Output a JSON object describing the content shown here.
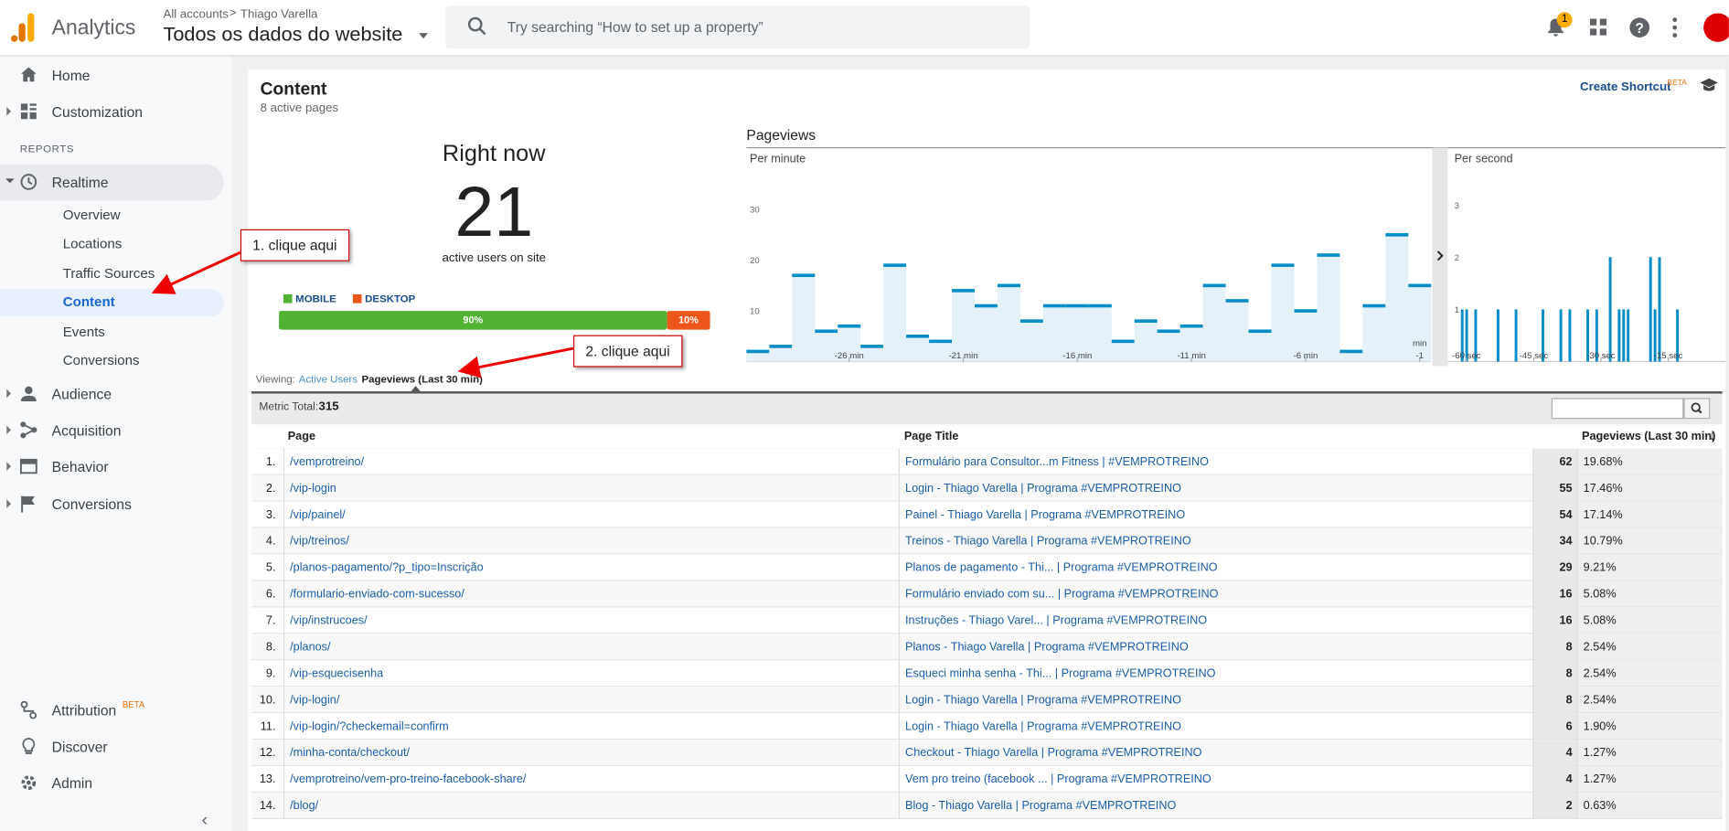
{
  "header": {
    "logo_text": "Analytics",
    "breadcrumb": [
      "All accounts",
      "Thiago Varella"
    ],
    "view": "Todos os dados do website",
    "search_placeholder": "Try searching “How to set up a property”",
    "notification_count": 1
  },
  "sidebar": {
    "home": "Home",
    "customization": "Customization",
    "section": "REPORTS",
    "realtime": "Realtime",
    "realtime_items": [
      "Overview",
      "Locations",
      "Traffic Sources",
      "Content",
      "Events",
      "Conversions"
    ],
    "groups": [
      "Audience",
      "Acquisition",
      "Behavior",
      "Conversions"
    ],
    "attribution": "Attribution",
    "attribution_badge": "BETA",
    "discover": "Discover",
    "admin": "Admin"
  },
  "content": {
    "title": "Content",
    "subtitle": "8 active pages",
    "create_shortcut": "Create Shortcut",
    "shortcut_badge": "BETA"
  },
  "right_now": {
    "label": "Right now",
    "value": 21,
    "caption": "active users on site",
    "devices": [
      {
        "name": "MOBILE",
        "color": "#50b432",
        "value": 90,
        "value_label": "90%"
      },
      {
        "name": "DESKTOP",
        "color": "#ed561b",
        "value": 10,
        "value_label": "10%"
      }
    ]
  },
  "annotations": [
    "1. clique aqui",
    "2. clique aqui"
  ],
  "pageviews": {
    "title": "Pageviews",
    "per_minute": {
      "type": "bar",
      "title": "Per minute",
      "color": "#058dc7",
      "values": [
        2,
        3,
        17,
        6,
        7,
        3,
        19,
        5,
        4,
        14,
        11,
        15,
        8,
        11,
        11,
        11,
        4,
        8,
        6,
        7,
        15,
        12,
        6,
        19,
        10,
        21,
        2,
        11,
        25,
        15
      ],
      "x": [
        -30,
        -29,
        -28,
        -27,
        -26,
        -25,
        -24,
        -23,
        -22,
        -21,
        -20,
        -19,
        -18,
        -17,
        -16,
        -15,
        -14,
        -13,
        -12,
        -11,
        -10,
        -9,
        -8,
        -7,
        -6,
        -5,
        -4,
        -3,
        -2,
        -1
      ],
      "xlim": [
        -30.5,
        -0.5
      ],
      "xticks": [
        {
          "value": -26,
          "label": "-26 min"
        },
        {
          "value": -21,
          "label": "-21 min"
        },
        {
          "value": -16,
          "label": "-16 min"
        },
        {
          "value": -11,
          "label": "-11 min"
        },
        {
          "value": -6,
          "label": "-6 min"
        },
        {
          "value": -1,
          "label": "-1"
        }
      ],
      "x_unit": "min",
      "ylim": [
        0,
        35
      ],
      "yticks": [
        10,
        20,
        30
      ]
    },
    "per_second": {
      "type": "bar",
      "title": "Per second",
      "color": "#058dc7",
      "values": [
        0,
        0,
        1,
        1,
        0,
        1,
        0,
        0,
        0,
        0,
        1,
        0,
        0,
        0,
        1,
        0,
        0,
        0,
        0,
        0,
        1,
        0,
        0,
        0,
        1,
        0,
        1,
        0,
        0,
        0,
        1,
        0,
        1,
        0,
        0,
        2,
        0,
        1,
        1,
        1,
        0,
        0,
        0,
        0,
        2,
        1,
        2,
        0,
        0,
        0,
        1,
        0,
        0,
        0,
        0,
        0,
        0,
        0,
        0,
        0
      ],
      "xlim": [
        -60,
        0
      ],
      "xticks": [
        {
          "value": -60,
          "label": "-60 sec"
        },
        {
          "value": -45,
          "label": "-45 sec"
        },
        {
          "value": -30,
          "label": "-30 sec"
        },
        {
          "value": -15,
          "label": "-15 sec"
        }
      ],
      "ylim": [
        0,
        3.4
      ],
      "yticks": [
        1,
        2,
        3
      ]
    }
  },
  "viewing": {
    "label": "Viewing:",
    "tabs": [
      "Active Users",
      "Pageviews (Last 30 min)"
    ]
  },
  "table": {
    "metric_total_label": "Metric Total:",
    "metric_total": 315,
    "columns": [
      "Page",
      "Page Title",
      "Pageviews (Last 30 min)"
    ],
    "rows": [
      {
        "rank": "1.",
        "page": "/vemprotreino/",
        "title": "Formulário para Consultor...m Fitness | #VEMPROTREINO",
        "pageviews": 62,
        "share": "19.68%"
      },
      {
        "rank": "2.",
        "page": "/vip-login",
        "title": "Login - Thiago Varella | Programa #VEMPROTREINO",
        "pageviews": 55,
        "share": "17.46%"
      },
      {
        "rank": "3.",
        "page": "/vip/painel/",
        "title": "Painel - Thiago Varella | Programa #VEMPROTREINO",
        "pageviews": 54,
        "share": "17.14%"
      },
      {
        "rank": "4.",
        "page": "/vip/treinos/",
        "title": "Treinos - Thiago Varella | Programa #VEMPROTREINO",
        "pageviews": 34,
        "share": "10.79%"
      },
      {
        "rank": "5.",
        "page": "/planos-pagamento/?p_tipo=Inscrição",
        "title": "Planos de pagamento - Thi... | Programa #VEMPROTREINO",
        "pageviews": 29,
        "share": "9.21%"
      },
      {
        "rank": "6.",
        "page": "/formulario-enviado-com-sucesso/",
        "title": "Formulário enviado com su... | Programa #VEMPROTREINO",
        "pageviews": 16,
        "share": "5.08%"
      },
      {
        "rank": "7.",
        "page": "/vip/instrucoes/",
        "title": "Instruções - Thiago Varel... | Programa #VEMPROTREINO",
        "pageviews": 16,
        "share": "5.08%"
      },
      {
        "rank": "8.",
        "page": "/planos/",
        "title": "Planos - Thiago Varella | Programa #VEMPROTREINO",
        "pageviews": 8,
        "share": "2.54%"
      },
      {
        "rank": "9.",
        "page": "/vip-esquecisenha",
        "title": "Esqueci minha senha - Thi... | Programa #VEMPROTREINO",
        "pageviews": 8,
        "share": "2.54%"
      },
      {
        "rank": "10.",
        "page": "/vip-login/",
        "title": "Login - Thiago Varella | Programa #VEMPROTREINO",
        "pageviews": 8,
        "share": "2.54%"
      },
      {
        "rank": "11.",
        "page": "/vip-login/?checkemail=confirm",
        "title": "Login - Thiago Varella | Programa #VEMPROTREINO",
        "pageviews": 6,
        "share": "1.90%"
      },
      {
        "rank": "12.",
        "page": "/minha-conta/checkout/",
        "title": "Checkout - Thiago Varella | Programa #VEMPROTREINO",
        "pageviews": 4,
        "share": "1.27%"
      },
      {
        "rank": "13.",
        "page": "/vemprotreino/vem-pro-treino-facebook-share/",
        "title": "Vem pro treino (facebook ... | Programa #VEMPROTREINO",
        "pageviews": 4,
        "share": "1.27%"
      },
      {
        "rank": "14.",
        "page": "/blog/",
        "title": "Blog - Thiago Varella | Programa #VEMPROTREINO",
        "pageviews": 2,
        "share": "0.63%"
      }
    ]
  }
}
